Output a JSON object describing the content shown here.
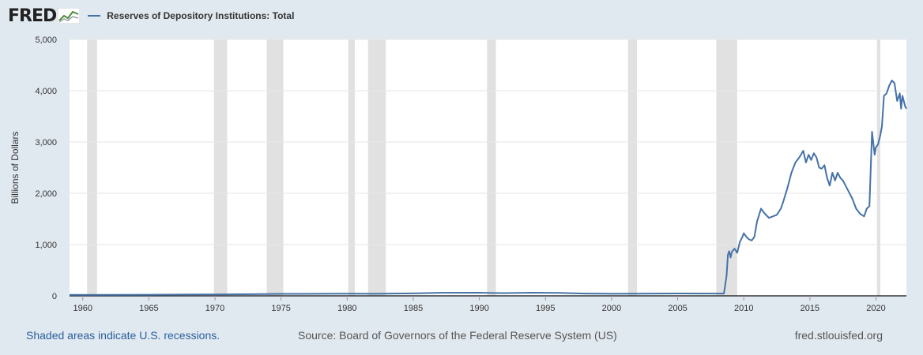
{
  "brand": {
    "logo_text": "FRED",
    "logo_icon": "fred-chart-icon"
  },
  "colors": {
    "series": "#4572a7",
    "recession": "#e1e1e1",
    "plot_bg": "#ffffff",
    "page_bg": "#e1e9f0",
    "grid": "#e6e6e6"
  },
  "chart_data": {
    "type": "line",
    "title": "",
    "xlabel": "",
    "ylabel": "Billions of Dollars",
    "xlim": [
      1959.0,
      2022.3
    ],
    "ylim": [
      0,
      5000
    ],
    "yticks": [
      0,
      1000,
      2000,
      3000,
      4000,
      5000
    ],
    "ytick_labels": [
      "0",
      "1,000",
      "2,000",
      "3,000",
      "4,000",
      "5,000"
    ],
    "xticks": [
      1960,
      1965,
      1970,
      1975,
      1980,
      1985,
      1990,
      1995,
      2000,
      2005,
      2010,
      2015,
      2020
    ],
    "xtick_labels": [
      "1960",
      "1965",
      "1970",
      "1975",
      "1980",
      "1985",
      "1990",
      "1995",
      "2000",
      "2005",
      "2010",
      "2015",
      "2020"
    ],
    "grid": true,
    "legend": "top-left",
    "recessions": [
      [
        1960.33,
        1961.08
      ],
      [
        1969.92,
        1970.92
      ],
      [
        1973.92,
        1975.17
      ],
      [
        1980.08,
        1980.58
      ],
      [
        1981.58,
        1982.92
      ],
      [
        1990.58,
        1991.25
      ],
      [
        2001.25,
        2001.92
      ],
      [
        2007.92,
        2009.5
      ],
      [
        2020.08,
        2020.33
      ]
    ],
    "series": [
      {
        "name": "Reserves of Depository Institutions: Total",
        "x": [
          1959.0,
          1965,
          1970,
          1973,
          1975,
          1978,
          1980,
          1982,
          1985,
          1987,
          1990,
          1991,
          1992,
          1994,
          1996,
          1998,
          2000,
          2002,
          2005,
          2008.0,
          2008.5,
          2008.7,
          2008.8,
          2008.9,
          2009.0,
          2009.1,
          2009.3,
          2009.5,
          2009.7,
          2009.9,
          2010.0,
          2010.2,
          2010.4,
          2010.6,
          2010.8,
          2011.0,
          2011.3,
          2011.6,
          2011.9,
          2012.2,
          2012.5,
          2012.8,
          2013.0,
          2013.3,
          2013.6,
          2013.9,
          2014.2,
          2014.5,
          2014.7,
          2014.9,
          2015.1,
          2015.3,
          2015.5,
          2015.7,
          2015.9,
          2016.1,
          2016.3,
          2016.5,
          2016.7,
          2016.9,
          2017.1,
          2017.3,
          2017.5,
          2017.7,
          2017.9,
          2018.2,
          2018.5,
          2018.8,
          2019.1,
          2019.3,
          2019.5,
          2019.7,
          2019.9,
          2020.0,
          2020.15,
          2020.3,
          2020.45,
          2020.6,
          2020.8,
          2021.0,
          2021.2,
          2021.4,
          2021.6,
          2021.8,
          2021.9,
          2022.0,
          2022.1,
          2022.2,
          2022.3
        ],
        "values": [
          18,
          22,
          27,
          33,
          38,
          40,
          43,
          40,
          47,
          60,
          61,
          55,
          54,
          62,
          57,
          45,
          40,
          42,
          46,
          44,
          45,
          400,
          800,
          870,
          750,
          860,
          920,
          840,
          1050,
          1150,
          1220,
          1150,
          1100,
          1080,
          1150,
          1450,
          1700,
          1600,
          1520,
          1550,
          1580,
          1700,
          1850,
          2100,
          2400,
          2600,
          2700,
          2830,
          2600,
          2750,
          2650,
          2780,
          2700,
          2500,
          2480,
          2550,
          2300,
          2150,
          2400,
          2250,
          2400,
          2300,
          2250,
          2150,
          2050,
          1900,
          1700,
          1600,
          1550,
          1700,
          1750,
          3200,
          2750,
          2900,
          2950,
          3100,
          3300,
          3900,
          3950,
          4100,
          4200,
          4150,
          3800,
          3950,
          3650,
          3900,
          3800,
          3700,
          3650
        ]
      }
    ]
  },
  "footer": {
    "note": "Shaded areas indicate U.S. recessions.",
    "source": "Source: Board of Governors of the Federal Reserve System (US)",
    "site": "fred.stlouisfed.org"
  }
}
